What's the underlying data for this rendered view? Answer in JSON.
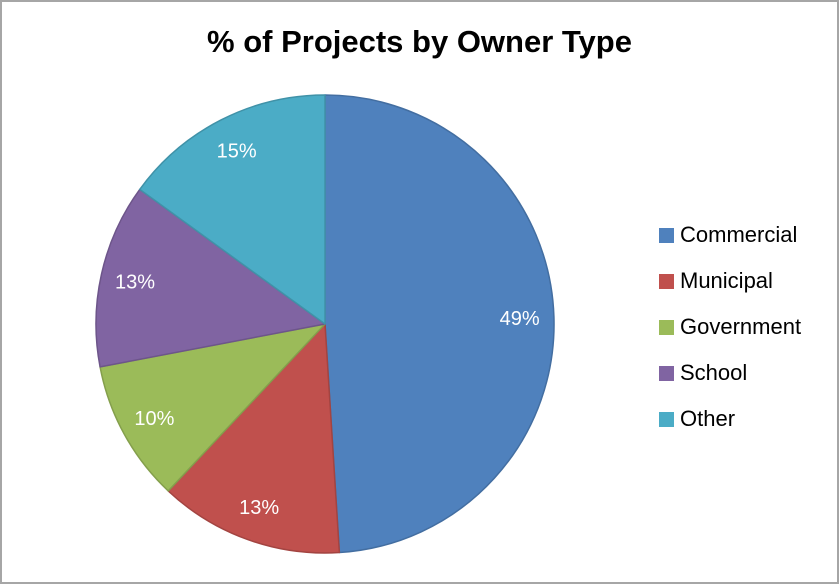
{
  "frame": {
    "background": "#FFFFFF",
    "border_color": "#A6A6A6"
  },
  "chart_data": {
    "type": "pie",
    "title": "% of Projects by Owner Type",
    "categories": [
      "Commercial",
      "Municipal",
      "Government",
      "School",
      "Other"
    ],
    "values": [
      49,
      13,
      10,
      13,
      15
    ],
    "slice_labels": [
      "49%",
      "13%",
      "10%",
      "13%",
      "15%"
    ],
    "colors": [
      "#4F81BD",
      "#C0504D",
      "#9BBB59",
      "#8064A2",
      "#4BACC6"
    ],
    "slice_label_color": "#FFFFFF",
    "legend_position": "right",
    "legend_text_color": "#000000",
    "start_angle": "12 o'clock",
    "direction": "clockwise",
    "grid": "off"
  }
}
